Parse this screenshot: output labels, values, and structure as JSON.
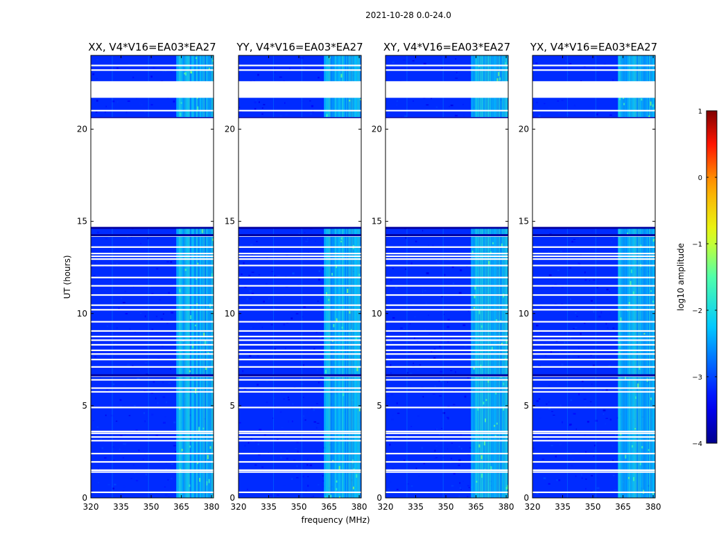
{
  "chart_data": {
    "type": "heatmap",
    "title": "2021-10-28 0.0-24.0",
    "xlabel": "frequency (MHz)",
    "ylabel": "UT (hours)",
    "xlim": [
      320,
      381
    ],
    "ylim": [
      0,
      24
    ],
    "xticks": [
      320,
      335,
      350,
      365,
      380
    ],
    "yticks": [
      0,
      5,
      10,
      15,
      20
    ],
    "panels": [
      {
        "title": "XX, V4*V16=EA03*EA27",
        "pol": "XX"
      },
      {
        "title": "YY, V4*V16=EA03*EA27",
        "pol": "YY"
      },
      {
        "title": "XY, V4*V16=EA03*EA27",
        "pol": "XY"
      },
      {
        "title": "YX, V4*V16=EA03*EA27",
        "pol": "YX"
      }
    ],
    "data_gaps_ut": [
      [
        14.7,
        20.6
      ],
      [
        21.7,
        22.6
      ]
    ],
    "flagged_rows_ut": [
      0.3,
      1.4,
      1.5,
      1.95,
      2.4,
      3.1,
      3.3,
      3.5,
      3.6,
      4.9,
      5.75,
      5.95,
      6.4,
      6.6,
      7.1,
      7.5,
      7.8,
      8.0,
      8.3,
      8.55,
      8.75,
      9.05,
      9.55,
      10.2,
      10.45,
      11.0,
      11.5,
      11.95,
      12.6,
      12.95,
      13.1,
      13.25,
      13.6,
      14.2,
      21.0,
      23.2,
      23.45
    ],
    "rfi_band_mhz": [
      362.5,
      381
    ],
    "colorbar": {
      "label": "log10 amplitude",
      "min": -4,
      "max": 1,
      "ticks": [
        -4,
        -3,
        -2,
        -1,
        0,
        1
      ],
      "tick_labels": [
        "−4",
        "−3",
        "−2",
        "−1",
        "0",
        "1"
      ],
      "colormap": "jet"
    }
  }
}
